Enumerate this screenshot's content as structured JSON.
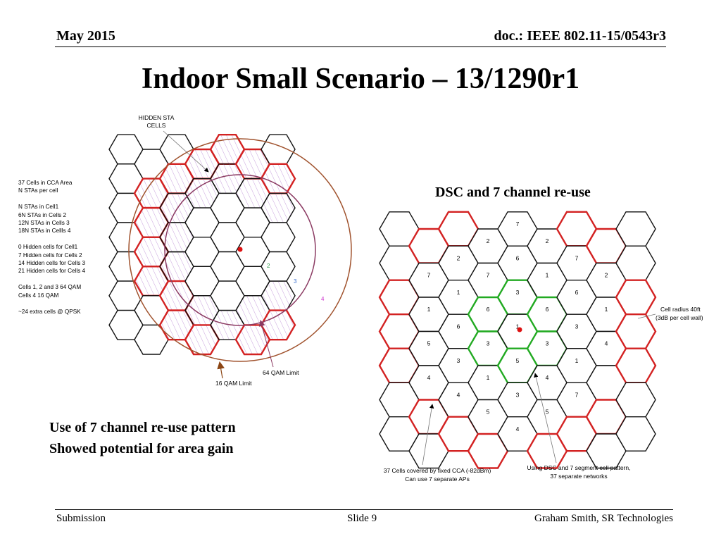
{
  "header": {
    "date": "May 2015",
    "doc": "doc.: IEEE 802.11-15/0543r3"
  },
  "title": "Indoor Small Scenario – 13/1290r1",
  "left_diagram": {
    "hidden_sta_label": [
      "HIDDEN STA",
      "CELLS"
    ],
    "notes": [
      "37 Cells in CCA Area",
      "N STAs per cell",
      "",
      "N STAs in Cell1",
      "6N STAs in Cells 2",
      "12N STAs in Cells 3",
      "18N STAs in Cellls 4",
      "",
      "0 Hidden cells for Cell1",
      "7 Hidden cells for Cells 2",
      "14 Hidden cells for Cells 3",
      "21 Hidden cells for Cells 4",
      "",
      "Cells 1, 2 and 3    64 QAM",
      "Cells 4                 16 QAM",
      "",
      "~24 extra cells @ QPSK"
    ],
    "ring_labels": [
      "2",
      "3",
      "4"
    ],
    "ring_label_colors": [
      "#2a9a4a",
      "#3a6fd0",
      "#cc33cc"
    ],
    "limit_64": "64 QAM Limit",
    "limit_16": "16 QAM Limit",
    "colors": {
      "outer_circle": "#a0522d",
      "inner_circle": "#8b3a62",
      "red_edge": "#d32222",
      "hatch": "#c8a0dc"
    }
  },
  "right_diagram": {
    "title": "DSC and 7 channel re-use",
    "cell_radius": [
      "Cell radius 40ft",
      "(3dB per cell wall)"
    ],
    "bottom_left": [
      "37 Cells covered by fixed CCA (-82dBm)",
      "Can use 7 separate APs"
    ],
    "bottom_right": [
      "Using DSC and 7 segment cell pattern,",
      "37 separate networks"
    ],
    "channel_numbers": [
      "7",
      "1",
      "5",
      "4",
      "2",
      "1",
      "6",
      "3",
      "4",
      "2",
      "7",
      "6",
      "3",
      "1",
      "5",
      "7",
      "6",
      "3",
      "1",
      "5",
      "3",
      "4",
      "2",
      "1",
      "6",
      "3",
      "4",
      "5",
      "7",
      "6",
      "3",
      "1",
      "7",
      "2",
      "1",
      "4"
    ],
    "colors": {
      "red_edge": "#d32222",
      "green_edge": "#22aa22"
    }
  },
  "caption": [
    "Use of 7 channel re-use pattern",
    "Showed potential for area gain"
  ],
  "footer": {
    "left": "Submission",
    "center": "Slide 9",
    "right": "Graham Smith, SR Technologies"
  }
}
